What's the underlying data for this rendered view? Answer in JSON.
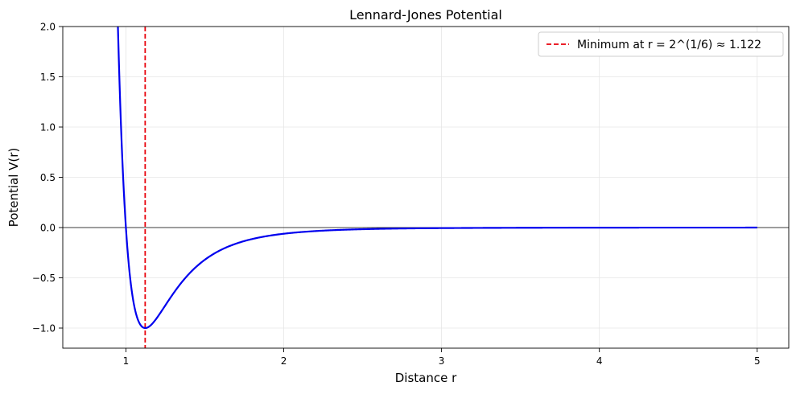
{
  "chart_data": {
    "type": "line",
    "title": "Lennard-Jones Potential",
    "xlabel": "Distance r",
    "ylabel": "Potential V(r)",
    "xlim": [
      0.6,
      5.2
    ],
    "ylim": [
      -1.2,
      2.0
    ],
    "x_ticks": [
      1,
      2,
      3,
      4,
      5
    ],
    "y_ticks": [
      -1.0,
      -0.5,
      0.0,
      0.5,
      1.0,
      1.5,
      2.0
    ],
    "x_tick_labels": [
      "1",
      "2",
      "3",
      "4",
      "5"
    ],
    "y_tick_labels": [
      "−1.0",
      "−0.5",
      "0.0",
      "0.5",
      "1.0",
      "1.5",
      "2.0"
    ],
    "grid": true,
    "legend_position": "upper right",
    "curve": {
      "function": "4*(r^-12 - r^-6)",
      "r_range": [
        0.9,
        5.0
      ],
      "color": "#0000ee"
    },
    "reference_lines": [
      {
        "orientation": "horizontal",
        "y": 0,
        "color": "#000000"
      },
      {
        "orientation": "vertical",
        "x": 1.122,
        "color": "#e8000b",
        "style": "dashed",
        "label": "Minimum at r = 2^(1/6) ≈ 1.122"
      }
    ]
  }
}
